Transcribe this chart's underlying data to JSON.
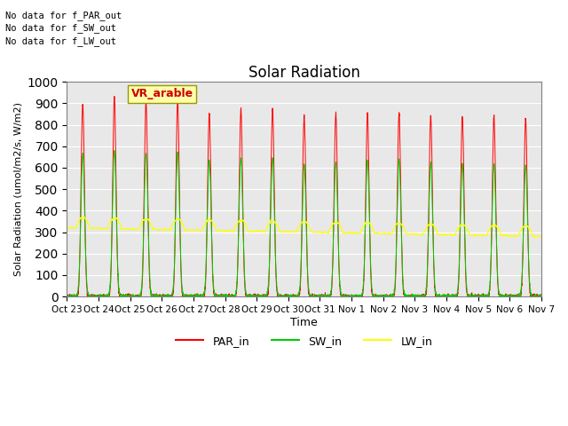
{
  "title": "Solar Radiation",
  "ylabel": "Solar Radiation (umol/m2/s, W/m2)",
  "xlabel": "Time",
  "ylim": [
    0,
    1000
  ],
  "xtick_labels": [
    "Oct 23",
    "Oct 24",
    "Oct 25",
    "Oct 26",
    "Oct 27",
    "Oct 28",
    "Oct 29",
    "Oct 30",
    "Oct 31",
    "Nov 1",
    "Nov 2",
    "Nov 3",
    "Nov 4",
    "Nov 5",
    "Nov 6",
    "Nov 7"
  ],
  "text_lines": [
    "No data for f_PAR_out",
    "No data for f_SW_out",
    "No data for f_LW_out"
  ],
  "annotation_box_text": "VR_arable",
  "annotation_box_color": "#ffffaa",
  "annotation_box_text_color": "#cc0000",
  "PAR_in_color": "#ff0000",
  "SW_in_color": "#00cc00",
  "LW_in_color": "#ffff00",
  "background_color": "#e8e8e8",
  "n_days": 15,
  "day_peak_PAR": [
    900,
    930,
    900,
    910,
    855,
    870,
    870,
    840,
    850,
    855,
    855,
    840,
    835,
    835,
    825
  ],
  "day_peak_SW": [
    665,
    680,
    665,
    675,
    635,
    645,
    645,
    615,
    625,
    635,
    635,
    620,
    615,
    615,
    610
  ],
  "LW_base": 330,
  "grid_color": "white",
  "legend_labels": [
    "PAR_in",
    "SW_in",
    "LW_in"
  ],
  "figsize": [
    6.4,
    4.8
  ],
  "dpi": 100
}
